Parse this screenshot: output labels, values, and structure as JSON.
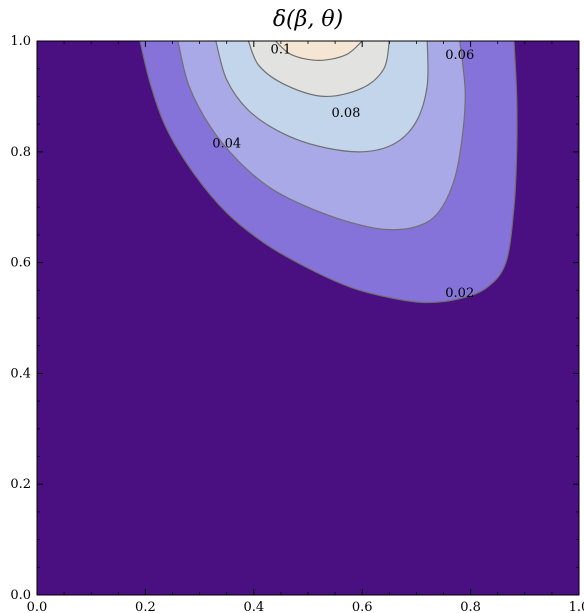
{
  "chart_data": {
    "type": "contour",
    "title": "δ(β, θ)",
    "xlabel": "",
    "ylabel": "",
    "xlim": [
      0.0,
      1.0
    ],
    "ylim": [
      0.0,
      1.0
    ],
    "x_ticks": [
      "0.0",
      "0.2",
      "0.4",
      "0.6",
      "0.8",
      "1.0"
    ],
    "y_ticks": [
      "0.0",
      "0.2",
      "0.4",
      "0.6",
      "0.8",
      "1.0"
    ],
    "grid": false,
    "legend": "none",
    "levels": [
      0.02,
      0.04,
      0.06,
      0.08,
      0.1
    ],
    "fill_colors": [
      "#4a0f80",
      "#8573d9",
      "#a8a9e6",
      "#c2d5ea",
      "#e2e2e0",
      "#f5e6d4"
    ],
    "contour_line_color": "#707070",
    "contour_labels": [
      {
        "text": "0.1",
        "x": 0.45,
        "y": 0.985
      },
      {
        "text": "0.06",
        "x": 0.78,
        "y": 0.975
      },
      {
        "text": "0.08",
        "x": 0.57,
        "y": 0.87
      },
      {
        "text": "0.04",
        "x": 0.35,
        "y": 0.815
      },
      {
        "text": "0.02",
        "x": 0.78,
        "y": 0.545
      }
    ],
    "contours": [
      {
        "level": 0.02,
        "points": [
          [
            0.19,
            1.0
          ],
          [
            0.21,
            0.92
          ],
          [
            0.24,
            0.84
          ],
          [
            0.29,
            0.76
          ],
          [
            0.35,
            0.69
          ],
          [
            0.42,
            0.635
          ],
          [
            0.5,
            0.59
          ],
          [
            0.58,
            0.555
          ],
          [
            0.66,
            0.535
          ],
          [
            0.72,
            0.528
          ],
          [
            0.78,
            0.535
          ],
          [
            0.83,
            0.555
          ],
          [
            0.865,
            0.6
          ],
          [
            0.88,
            0.7
          ],
          [
            0.885,
            0.8
          ],
          [
            0.885,
            0.9
          ],
          [
            0.88,
            1.0
          ]
        ]
      },
      {
        "level": 0.04,
        "points": [
          [
            0.26,
            1.0
          ],
          [
            0.28,
            0.92
          ],
          [
            0.32,
            0.845
          ],
          [
            0.37,
            0.785
          ],
          [
            0.43,
            0.735
          ],
          [
            0.5,
            0.7
          ],
          [
            0.57,
            0.675
          ],
          [
            0.64,
            0.66
          ],
          [
            0.7,
            0.665
          ],
          [
            0.74,
            0.69
          ],
          [
            0.77,
            0.75
          ],
          [
            0.785,
            0.83
          ],
          [
            0.79,
            0.91
          ],
          [
            0.78,
            1.0
          ]
        ]
      },
      {
        "level": 0.06,
        "points": [
          [
            0.33,
            1.0
          ],
          [
            0.35,
            0.93
          ],
          [
            0.39,
            0.875
          ],
          [
            0.45,
            0.835
          ],
          [
            0.52,
            0.81
          ],
          [
            0.6,
            0.8
          ],
          [
            0.66,
            0.815
          ],
          [
            0.7,
            0.855
          ],
          [
            0.72,
            0.92
          ],
          [
            0.72,
            1.0
          ]
        ]
      },
      {
        "level": 0.08,
        "points": [
          [
            0.39,
            1.0
          ],
          [
            0.41,
            0.955
          ],
          [
            0.46,
            0.92
          ],
          [
            0.53,
            0.9
          ],
          [
            0.6,
            0.915
          ],
          [
            0.64,
            0.95
          ],
          [
            0.65,
            1.0
          ]
        ]
      },
      {
        "level": 0.1,
        "points": [
          [
            0.44,
            1.0
          ],
          [
            0.47,
            0.975
          ],
          [
            0.52,
            0.965
          ],
          [
            0.57,
            0.975
          ],
          [
            0.6,
            1.0
          ]
        ]
      }
    ]
  }
}
